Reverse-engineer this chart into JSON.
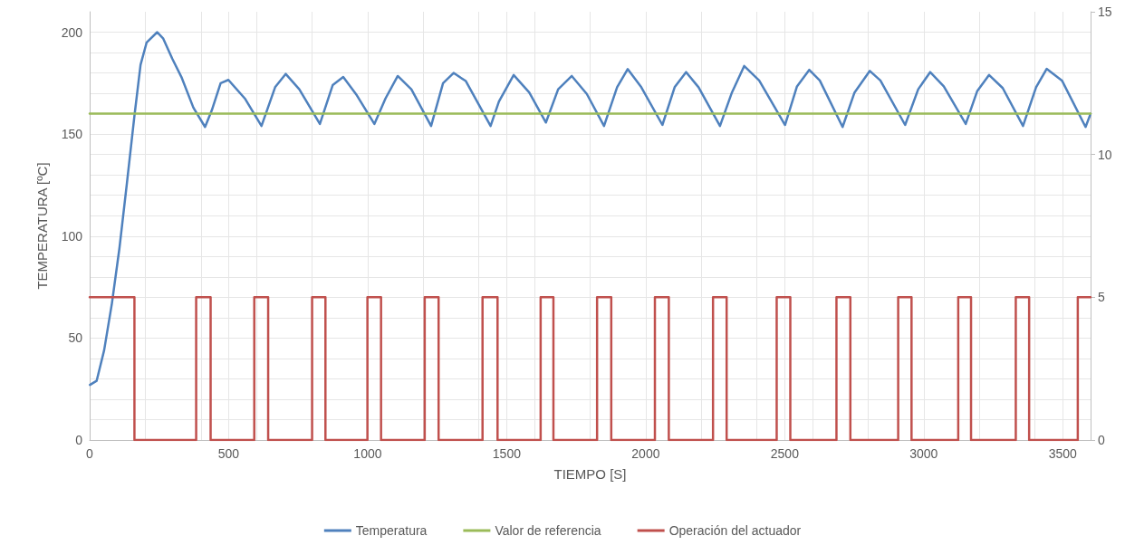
{
  "chart_data": {
    "type": "line",
    "xlabel": "TIEMPO [S]",
    "ylabel": "TEMPERATURA [ºC]",
    "xlim": [
      0,
      3600
    ],
    "xticks": [
      0,
      500,
      1000,
      1500,
      2000,
      2500,
      3000,
      3500
    ],
    "ylim": [
      0,
      210
    ],
    "yticks": [
      0,
      50,
      100,
      150,
      200
    ],
    "y2lim": [
      0,
      15
    ],
    "y2ticks": [
      0,
      5,
      10,
      15
    ],
    "grid": true,
    "legend": "bottom",
    "marker": "none",
    "line_style": "solid",
    "series": [
      {
        "name": "Temperatura",
        "color": "#4f81bd",
        "x": [
          1,
          25,
          52,
          80,
          107,
          134,
          161,
          183,
          205,
          243,
          264,
          297,
          330,
          373,
          415,
          439,
          471,
          499,
          558,
          618,
          667,
          705,
          754,
          828,
          874,
          912,
          961,
          1024,
          1064,
          1108,
          1157,
          1228,
          1271,
          1309,
          1353,
          1442,
          1472,
          1525,
          1581,
          1641,
          1685,
          1734,
          1788,
          1850,
          1897,
          1935,
          1984,
          2060,
          2104,
          2145,
          2190,
          2267,
          2310,
          2354,
          2408,
          2501,
          2544,
          2588,
          2626,
          2708,
          2751,
          2806,
          2844,
          2933,
          2980,
          3023,
          3072,
          3151,
          3192,
          3235,
          3284,
          3357,
          3404,
          3442,
          3497,
          3582,
          3600
        ],
        "values": [
          27,
          29,
          44,
          67,
          94,
          126,
          159,
          184,
          195,
          200,
          197,
          187,
          178,
          163,
          153.5,
          161.6,
          175,
          176.6,
          167.5,
          154,
          173,
          179.5,
          172,
          155,
          174,
          178,
          169,
          155,
          167.5,
          178.5,
          172,
          154,
          175,
          180,
          176,
          154,
          166,
          179,
          170.4,
          155.7,
          172,
          178.5,
          169.7,
          154,
          173,
          181.9,
          173,
          154.5,
          173,
          180.4,
          173,
          154,
          170.4,
          183.4,
          176.3,
          154.5,
          173.4,
          181.5,
          176.3,
          153.5,
          170.4,
          181,
          176.3,
          154.5,
          172,
          180.4,
          173.4,
          155,
          171,
          179,
          172.6,
          154,
          173,
          182,
          176.3,
          153.5,
          160
        ]
      },
      {
        "name": "Valor de referencia",
        "color": "#9bbb59",
        "x": [
          0,
          3600
        ],
        "values": [
          160,
          160
        ]
      },
      {
        "name": "Operación del actuador",
        "type": "step",
        "axis": "y2",
        "color": "#c0504d",
        "x": [
          0,
          161,
          383,
          435,
          592,
          642,
          800,
          848,
          999,
          1048,
          1205,
          1255,
          1413,
          1467,
          1622,
          1668,
          1825,
          1876,
          2033,
          2083,
          2242,
          2291,
          2471,
          2520,
          2686,
          2736,
          2908,
          2956,
          3124,
          3170,
          3331,
          3379,
          3554,
          3600
        ],
        "values": [
          5,
          0,
          5,
          0,
          5,
          0,
          5,
          0,
          5,
          0,
          5,
          0,
          5,
          0,
          5,
          0,
          5,
          0,
          5,
          0,
          5,
          0,
          5,
          0,
          5,
          0,
          5,
          0,
          5,
          0,
          5,
          0,
          5,
          5
        ]
      }
    ]
  }
}
